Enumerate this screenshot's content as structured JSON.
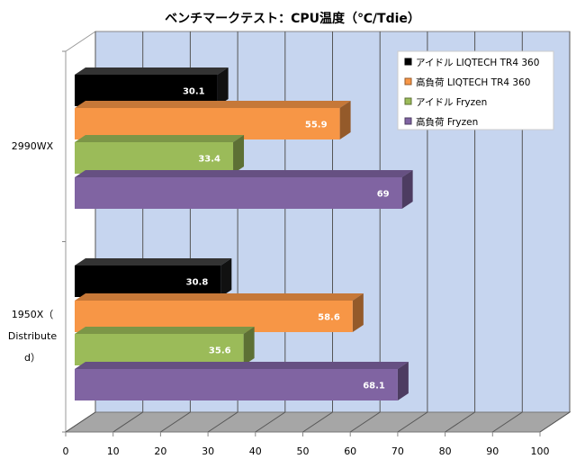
{
  "chart_data": {
    "type": "bar",
    "orientation": "horizontal",
    "title": "ベンチマークテスト：CPU温度（℃/Tdie）",
    "categories": [
      "2990WX",
      "1950X（Distributed）"
    ],
    "category_lines": [
      [
        "2990WX"
      ],
      [
        "1950X（",
        "Distribute",
        "d）"
      ]
    ],
    "series": [
      {
        "name": "アイドル LIQTECH TR4 360",
        "color": "#000000",
        "values": [
          30.1,
          30.8
        ]
      },
      {
        "name": "高負荷 LIQTECH TR4 360",
        "color": "#f79646",
        "values": [
          55.9,
          58.6
        ]
      },
      {
        "name": "アイドル Fryzen",
        "color": "#9bbb59",
        "values": [
          33.4,
          35.6
        ]
      },
      {
        "name": "高負荷 Fryzen",
        "color": "#8064a2",
        "values": [
          69,
          68.1
        ]
      }
    ],
    "xlim": [
      0,
      100
    ],
    "xticks": [
      0,
      10,
      20,
      30,
      40,
      50,
      60,
      70,
      80,
      90,
      100
    ],
    "grid": true,
    "legend": "top-right",
    "xlabel": "",
    "ylabel": ""
  }
}
